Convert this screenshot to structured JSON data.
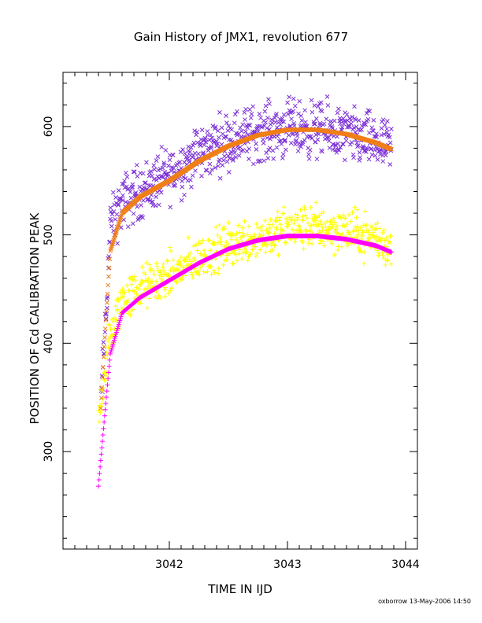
{
  "chart_data": {
    "type": "scatter",
    "title": "Gain History of JMX1, revolution 677",
    "xlabel": "TIME IN IJD",
    "ylabel": "POSITION OF Cd CALIBRATION PEAK",
    "xlim": [
      3041.1,
      3044.1
    ],
    "ylim": [
      210,
      650
    ],
    "x_ticks": [
      3042,
      3043,
      3044
    ],
    "y_ticks": [
      300,
      400,
      500,
      600
    ],
    "grid": false,
    "series": [
      {
        "marker": "x",
        "color": "#7b2fd6",
        "role": "raw",
        "trend_ref": "upper_fit",
        "scatter": 25,
        "x": [
          3041.42,
          3041.45,
          3041.5,
          3041.6,
          3041.75,
          3042.0,
          3042.25,
          3042.5,
          3042.75,
          3043.0,
          3043.25,
          3043.5,
          3043.75,
          3043.88
        ],
        "y": [
          340,
          400,
          505,
          530,
          540,
          555,
          575,
          588,
          595,
          598,
          597,
          592,
          585,
          578
        ]
      },
      {
        "marker": "x",
        "color": "#f07f16",
        "role": "fit",
        "name_ref": "upper_fit",
        "x": [
          3041.42,
          3041.45,
          3041.5,
          3041.6,
          3041.75,
          3042.0,
          3042.25,
          3042.5,
          3042.75,
          3043.0,
          3043.25,
          3043.5,
          3043.75,
          3043.88
        ],
        "y": [
          340,
          400,
          485,
          520,
          535,
          550,
          568,
          582,
          592,
          597,
          597,
          593,
          585,
          579
        ]
      },
      {
        "marker": "+",
        "color": "#ffff00",
        "role": "raw",
        "trend_ref": "lower_fit",
        "scatter": 20,
        "x": [
          3041.4,
          3041.45,
          3041.5,
          3041.6,
          3041.75,
          3042.0,
          3042.25,
          3042.5,
          3042.75,
          3043.0,
          3043.25,
          3043.5,
          3043.75,
          3043.88
        ],
        "y": [
          330,
          370,
          405,
          440,
          450,
          462,
          478,
          490,
          498,
          505,
          508,
          503,
          497,
          487
        ]
      },
      {
        "marker": "+",
        "color": "#ff00ff",
        "role": "fit",
        "name_ref": "lower_fit",
        "x": [
          3041.4,
          3041.45,
          3041.5,
          3041.6,
          3041.75,
          3042.0,
          3042.25,
          3042.5,
          3042.75,
          3043.0,
          3043.25,
          3043.5,
          3043.75,
          3043.88
        ],
        "y": [
          268,
          330,
          390,
          428,
          442,
          458,
          474,
          487,
          495,
          499,
          499,
          496,
          490,
          484
        ]
      }
    ]
  },
  "credit": "oxborrow 13-May-2006 14:50"
}
